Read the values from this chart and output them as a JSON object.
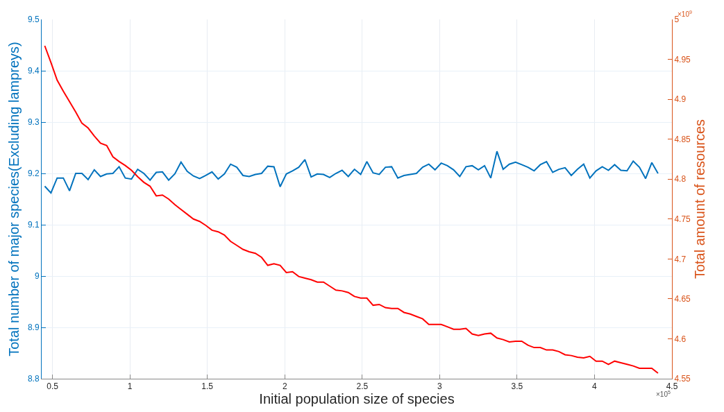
{
  "chart_data": {
    "type": "line",
    "xlabel": "Initial population size of species",
    "ylabel": "Total number of major species(Excluding lampreys)",
    "y2label": "Total amount of resources",
    "annotations": [
      "×10$^{5}$",
      "×10$^{9}$"
    ],
    "x": [
      0.45,
      0.49,
      0.53,
      0.57,
      0.61,
      0.65,
      0.69,
      0.73,
      0.77,
      0.81,
      0.85,
      0.89,
      0.93,
      0.97,
      1.01,
      1.05,
      1.09,
      1.13,
      1.17,
      1.21,
      1.25,
      1.29,
      1.33,
      1.37,
      1.41,
      1.45,
      1.49,
      1.53,
      1.57,
      1.61,
      1.65,
      1.69,
      1.73,
      1.77,
      1.81,
      1.85,
      1.89,
      1.93,
      1.97,
      2.01,
      2.05,
      2.09,
      2.13,
      2.17,
      2.21,
      2.25,
      2.29,
      2.33,
      2.37,
      2.41,
      2.45,
      2.49,
      2.53,
      2.57,
      2.61,
      2.65,
      2.69,
      2.73,
      2.77,
      2.81,
      2.85,
      2.89,
      2.93,
      2.97,
      3.01,
      3.05,
      3.09,
      3.13,
      3.17,
      3.21,
      3.25,
      3.29,
      3.33,
      3.37,
      3.41,
      3.45,
      3.49,
      3.53,
      3.57,
      3.61,
      3.65,
      3.69,
      3.73,
      3.77,
      3.81,
      3.85,
      3.89,
      3.93,
      3.97,
      4.01,
      4.05,
      4.09,
      4.13,
      4.17,
      4.21,
      4.25,
      4.29,
      4.33,
      4.37,
      4.41
    ],
    "series": [
      {
        "color": "#0072bd",
        "values": [
          9.175,
          9.162,
          9.191,
          9.191,
          9.166,
          9.2,
          9.2,
          9.188,
          9.207,
          9.194,
          9.199,
          9.2,
          9.213,
          9.191,
          9.189,
          9.208,
          9.2,
          9.187,
          9.202,
          9.203,
          9.187,
          9.199,
          9.222,
          9.204,
          9.195,
          9.19,
          9.196,
          9.203,
          9.189,
          9.199,
          9.218,
          9.212,
          9.196,
          9.194,
          9.198,
          9.2,
          9.214,
          9.213,
          9.174,
          9.199,
          9.205,
          9.212,
          9.227,
          9.193,
          9.199,
          9.198,
          9.192,
          9.2,
          9.206,
          9.194,
          9.208,
          9.198,
          9.223,
          9.201,
          9.198,
          9.212,
          9.213,
          9.191,
          9.196,
          9.198,
          9.2,
          9.212,
          9.218,
          9.207,
          9.22,
          9.215,
          9.207,
          9.194,
          9.213,
          9.215,
          9.207,
          9.215,
          9.191,
          9.243,
          9.208,
          9.218,
          9.222,
          9.217,
          9.212,
          9.205,
          9.217,
          9.223,
          9.202,
          9.208,
          9.211,
          9.196,
          9.208,
          9.218,
          9.191,
          9.205,
          9.213,
          9.206,
          9.217,
          9.206,
          9.205,
          9.224,
          9.212,
          9.19,
          9.221,
          9.2
        ]
      },
      {
        "color": "#ff0000",
        "axis": "y2",
        "values": [
          4.967,
          4.946,
          4.924,
          4.91,
          4.897,
          4.884,
          4.87,
          4.864,
          4.854,
          4.845,
          4.842,
          4.828,
          4.822,
          4.817,
          4.811,
          4.803,
          4.796,
          4.791,
          4.779,
          4.78,
          4.775,
          4.768,
          4.762,
          4.756,
          4.75,
          4.747,
          4.742,
          4.736,
          4.734,
          4.73,
          4.722,
          4.717,
          4.712,
          4.709,
          4.707,
          4.702,
          4.692,
          4.694,
          4.692,
          4.683,
          4.684,
          4.678,
          4.676,
          4.674,
          4.671,
          4.671,
          4.666,
          4.661,
          4.66,
          4.658,
          4.653,
          4.651,
          4.651,
          4.642,
          4.643,
          4.639,
          4.638,
          4.638,
          4.633,
          4.631,
          4.628,
          4.625,
          4.618,
          4.618,
          4.618,
          4.615,
          4.612,
          4.612,
          4.613,
          4.606,
          4.604,
          4.606,
          4.607,
          4.601,
          4.599,
          4.596,
          4.597,
          4.597,
          4.592,
          4.589,
          4.589,
          4.586,
          4.586,
          4.584,
          4.58,
          4.579,
          4.577,
          4.576,
          4.578,
          4.572,
          4.572,
          4.568,
          4.572,
          4.57,
          4.568,
          4.566,
          4.563,
          4.563,
          4.563,
          4.557
        ]
      }
    ],
    "xlim": [
      0.43,
      4.5
    ],
    "xticks": [
      0.5,
      1,
      1.5,
      2,
      2.5,
      3,
      3.5,
      4,
      4.5
    ],
    "ylim": [
      8.8,
      9.5
    ],
    "yticks": [
      8.8,
      8.9,
      9,
      9.1,
      9.2,
      9.3,
      9.4,
      9.5
    ],
    "y2lim": [
      4.55,
      5
    ],
    "y2ticks": [
      4.55,
      4.6,
      4.65,
      4.7,
      4.75,
      4.8,
      4.85,
      4.9,
      4.95,
      5
    ],
    "grid": true,
    "marker": "none",
    "line_style": "solid"
  }
}
